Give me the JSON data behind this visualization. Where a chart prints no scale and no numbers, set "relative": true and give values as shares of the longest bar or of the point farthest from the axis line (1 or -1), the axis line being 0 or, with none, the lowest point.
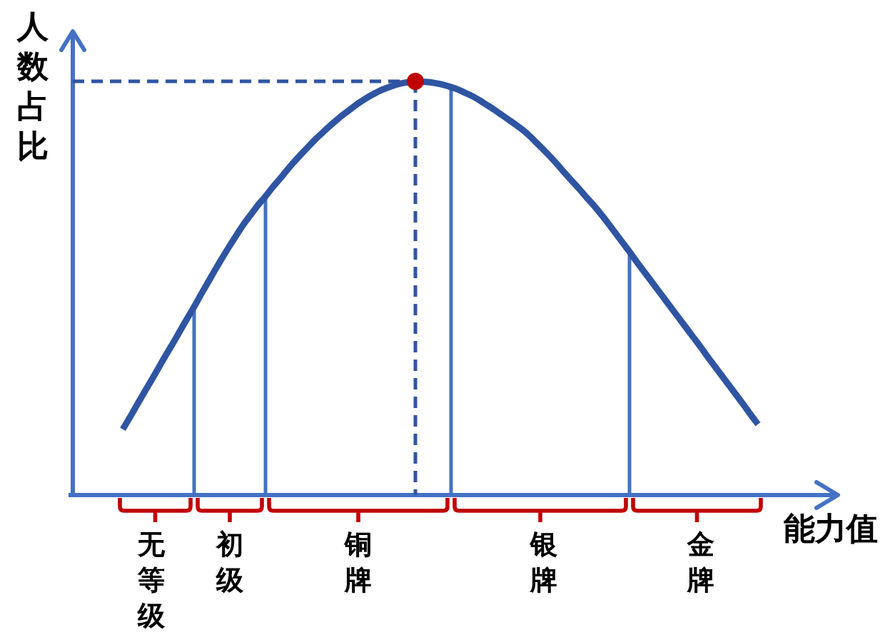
{
  "chart_data": {
    "type": "line",
    "xlabel": "能力值",
    "ylabel": "人数占比",
    "relative": true,
    "categories": [
      null,
      null,
      null,
      null,
      null,
      null,
      null,
      null,
      null,
      null,
      null,
      "无等级",
      null,
      null,
      null,
      null,
      null,
      null,
      null,
      null,
      null,
      null,
      "初级",
      null,
      null,
      null,
      null,
      null,
      null,
      null,
      null,
      null,
      null,
      null,
      null,
      null,
      null,
      null,
      null,
      null,
      "铜牌",
      null,
      null,
      null,
      null,
      null,
      null,
      null,
      null,
      null,
      null,
      null,
      null,
      null,
      null,
      null,
      null,
      null,
      null,
      null,
      null,
      null,
      null,
      null,
      null,
      null,
      "银牌",
      null,
      null,
      null,
      null,
      null,
      null,
      null,
      null,
      null,
      null,
      null,
      null,
      null,
      null,
      null,
      null,
      null,
      null,
      null,
      null,
      null,
      "金牌",
      null,
      null,
      null,
      null,
      null,
      null,
      null,
      null
    ],
    "series": [
      {
        "color": "#2f55a2",
        "values": [
          null,
          null,
          null,
          null,
          null,
          null,
          null,
          0.159,
          0.188,
          0.218,
          0.248,
          0.277,
          0.307,
          0.337,
          0.366,
          0.396,
          0.426,
          0.455,
          0.486,
          0.516,
          0.546,
          0.575,
          0.603,
          0.63,
          0.656,
          0.679,
          0.702,
          0.722,
          0.744,
          0.764,
          0.785,
          0.805,
          0.824,
          0.842,
          0.86,
          0.876,
          0.892,
          0.907,
          0.921,
          0.934,
          0.947,
          0.958,
          0.968,
          0.977,
          0.984,
          0.99,
          0.995,
          0.998,
          1,
          0.999,
          0.998,
          0.995,
          0.991,
          0.986,
          0.98,
          0.972,
          0.964,
          0.954,
          0.943,
          0.932,
          0.92,
          0.908,
          0.896,
          0.883,
          0.868,
          0.851,
          0.834,
          0.816,
          0.797,
          0.777,
          0.758,
          0.739,
          0.719,
          0.7,
          0.679,
          0.657,
          0.634,
          0.611,
          0.588,
          0.564,
          0.541,
          0.518,
          0.495,
          0.472,
          0.449,
          0.426,
          0.403,
          0.38,
          0.357,
          0.333,
          0.31,
          0.287,
          0.264,
          0.241,
          0.218,
          0.194,
          0.171
        ]
      },
      {
        "type": "bar",
        "color": "#4472c4",
        "values": [
          null,
          null,
          null,
          null,
          null,
          null,
          null,
          null,
          null,
          null,
          null,
          null,
          null,
          null,
          null,
          null,
          null,
          0.455,
          null,
          null,
          null,
          null,
          null,
          null,
          null,
          null,
          null,
          0.722,
          null,
          null,
          null,
          null,
          null,
          null,
          null,
          null,
          null,
          null,
          null,
          null,
          null,
          null,
          null,
          null,
          null,
          null,
          null,
          null,
          null,
          null,
          null,
          null,
          null,
          0.986,
          null,
          null,
          null,
          null,
          null,
          null,
          null,
          null,
          null,
          null,
          null,
          null,
          null,
          null,
          null,
          null,
          null,
          null,
          null,
          null,
          null,
          null,
          null,
          null,
          0.588,
          null,
          null,
          null,
          null,
          null,
          null,
          null,
          null,
          null,
          null,
          null,
          null,
          null,
          null,
          null,
          null,
          null,
          null
        ]
      },
      {
        "type": "line",
        "line_style": "dashed",
        "color": "#2f55a2",
        "values": [
          1,
          1,
          1,
          1,
          1,
          1,
          1,
          1,
          1,
          1,
          1,
          1,
          1,
          1,
          1,
          1,
          1,
          1,
          1,
          1,
          1,
          1,
          1,
          1,
          1,
          1,
          1,
          1,
          1,
          1,
          1,
          1,
          1,
          1,
          1,
          1,
          1,
          1,
          1,
          1,
          1,
          1,
          1,
          1,
          1,
          1,
          1,
          1,
          1,
          null,
          null,
          null,
          null,
          null,
          null,
          null,
          null,
          null,
          null,
          null,
          null,
          null,
          null,
          null,
          null,
          null,
          null,
          null,
          null,
          null,
          null,
          null,
          null,
          null,
          null,
          null,
          null,
          null,
          null,
          null,
          null,
          null,
          null,
          null,
          null,
          null,
          null,
          null,
          null,
          null,
          null,
          null,
          null,
          null,
          null,
          null,
          null
        ]
      },
      {
        "type": "lollipop",
        "line_style": "dashed",
        "color": "#c00000",
        "values": [
          null,
          null,
          null,
          null,
          null,
          null,
          null,
          null,
          null,
          null,
          null,
          null,
          null,
          null,
          null,
          null,
          null,
          null,
          null,
          null,
          null,
          null,
          null,
          null,
          null,
          null,
          null,
          null,
          null,
          null,
          null,
          null,
          null,
          null,
          null,
          null,
          null,
          null,
          null,
          null,
          null,
          null,
          null,
          null,
          null,
          null,
          null,
          null,
          1,
          null,
          null,
          null,
          null,
          null,
          null,
          null,
          null,
          null,
          null,
          null,
          null,
          null,
          null,
          null,
          null,
          null,
          null,
          null,
          null,
          null,
          null,
          null,
          null,
          null,
          null,
          null,
          null,
          null,
          null,
          null,
          null,
          null,
          null,
          null,
          null,
          null,
          null,
          null,
          null,
          null,
          null,
          null,
          null,
          null,
          null,
          null,
          null
        ]
      }
    ],
    "ref_lines": [
      {
        "axis": "y",
        "value": 0,
        "color": "#4472c4"
      }
    ]
  }
}
